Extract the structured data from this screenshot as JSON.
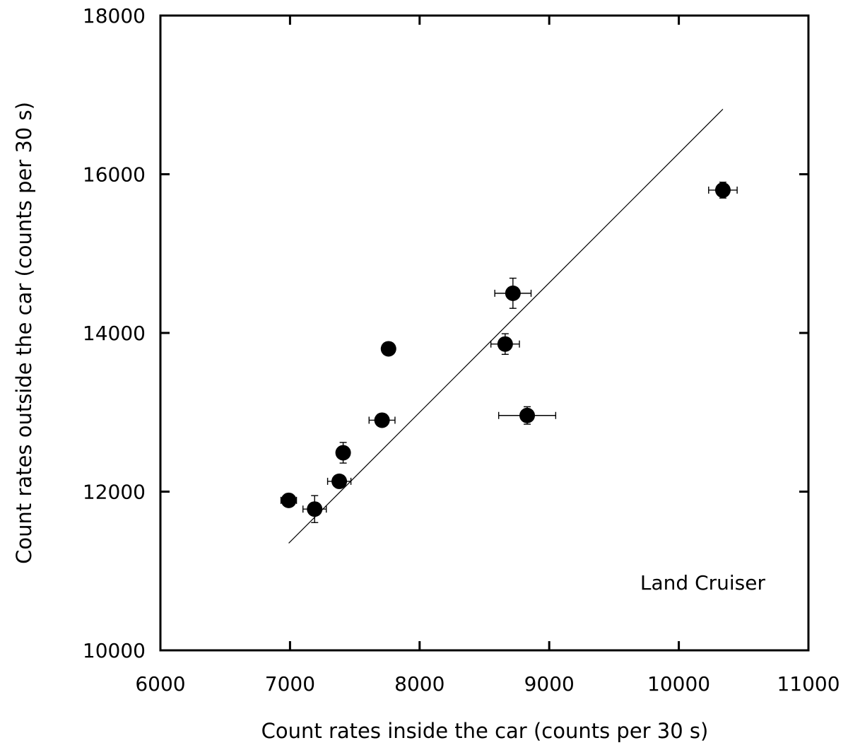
{
  "chart_data": {
    "type": "scatter",
    "xlabel": "Count rates inside the car (counts per 30 s)",
    "ylabel": "Count rates outside the car (counts per 30 s)",
    "xlim": [
      6000,
      11000
    ],
    "ylim": [
      10000,
      18000
    ],
    "xticks": [
      6000,
      7000,
      8000,
      9000,
      10000,
      11000
    ],
    "yticks": [
      10000,
      12000,
      14000,
      16000,
      18000
    ],
    "xtick_labels": [
      "6000",
      "7000",
      "8000",
      "9000",
      "10000",
      "11000"
    ],
    "ytick_labels": [
      "10000",
      "12000",
      "14000",
      "16000",
      "18000"
    ],
    "annotation": "Land Cruiser",
    "grid": false,
    "series": [
      {
        "points": [
          {
            "x": 6990,
            "y": 11890,
            "xerr": 60,
            "yerr": 60
          },
          {
            "x": 7190,
            "y": 11780,
            "xerr": 90,
            "yerr": 170
          },
          {
            "x": 7380,
            "y": 12130,
            "xerr": 90,
            "yerr": 40
          },
          {
            "x": 7410,
            "y": 12490,
            "xerr": 25,
            "yerr": 130
          },
          {
            "x": 7710,
            "y": 12900,
            "xerr": 100,
            "yerr": 40
          },
          {
            "x": 7760,
            "y": 13800,
            "xerr": 40,
            "yerr": 40
          },
          {
            "x": 8660,
            "y": 13860,
            "xerr": 110,
            "yerr": 130
          },
          {
            "x": 8720,
            "y": 14500,
            "xerr": 140,
            "yerr": 190
          },
          {
            "x": 8830,
            "y": 12960,
            "xerr": 220,
            "yerr": 110
          },
          {
            "x": 10340,
            "y": 15800,
            "xerr": 110,
            "yerr": 100
          }
        ],
        "color": "#000000"
      }
    ],
    "fit_line": {
      "x": [
        6990,
        10340
      ],
      "y": [
        11350,
        16820
      ],
      "color": "#000000"
    }
  }
}
